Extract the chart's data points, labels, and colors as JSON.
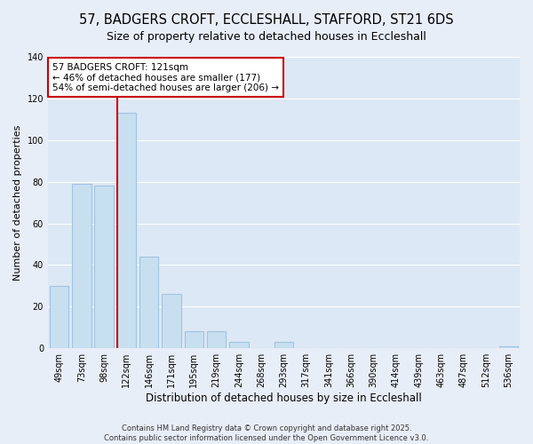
{
  "title": "57, BADGERS CROFT, ECCLESHALL, STAFFORD, ST21 6DS",
  "subtitle": "Size of property relative to detached houses in Eccleshall",
  "xlabel": "Distribution of detached houses by size in Eccleshall",
  "ylabel": "Number of detached properties",
  "bar_labels": [
    "49sqm",
    "73sqm",
    "98sqm",
    "122sqm",
    "146sqm",
    "171sqm",
    "195sqm",
    "219sqm",
    "244sqm",
    "268sqm",
    "293sqm",
    "317sqm",
    "341sqm",
    "366sqm",
    "390sqm",
    "414sqm",
    "439sqm",
    "463sqm",
    "487sqm",
    "512sqm",
    "536sqm"
  ],
  "bar_values": [
    30,
    79,
    78,
    113,
    44,
    26,
    8,
    8,
    3,
    0,
    3,
    0,
    0,
    0,
    0,
    0,
    0,
    0,
    0,
    0,
    1
  ],
  "bar_color": "#c8dff0",
  "bar_edge_color": "#a0c4e0",
  "vline_index": 3,
  "vline_color": "#cc0000",
  "ylim": [
    0,
    140
  ],
  "yticks": [
    0,
    20,
    40,
    60,
    80,
    100,
    120,
    140
  ],
  "annotation_text": "57 BADGERS CROFT: 121sqm\n← 46% of detached houses are smaller (177)\n54% of semi-detached houses are larger (206) →",
  "annotation_box_color": "#ffffff",
  "annotation_box_edge": "#cc0000",
  "footer_line1": "Contains HM Land Registry data © Crown copyright and database right 2025.",
  "footer_line2": "Contains public sector information licensed under the Open Government Licence v3.0.",
  "background_color": "#e8eef8",
  "plot_bg_color": "#dce8f5",
  "grid_color": "#ffffff",
  "title_fontsize": 10.5,
  "subtitle_fontsize": 9,
  "tick_fontsize": 7,
  "ylabel_fontsize": 8,
  "xlabel_fontsize": 8.5
}
